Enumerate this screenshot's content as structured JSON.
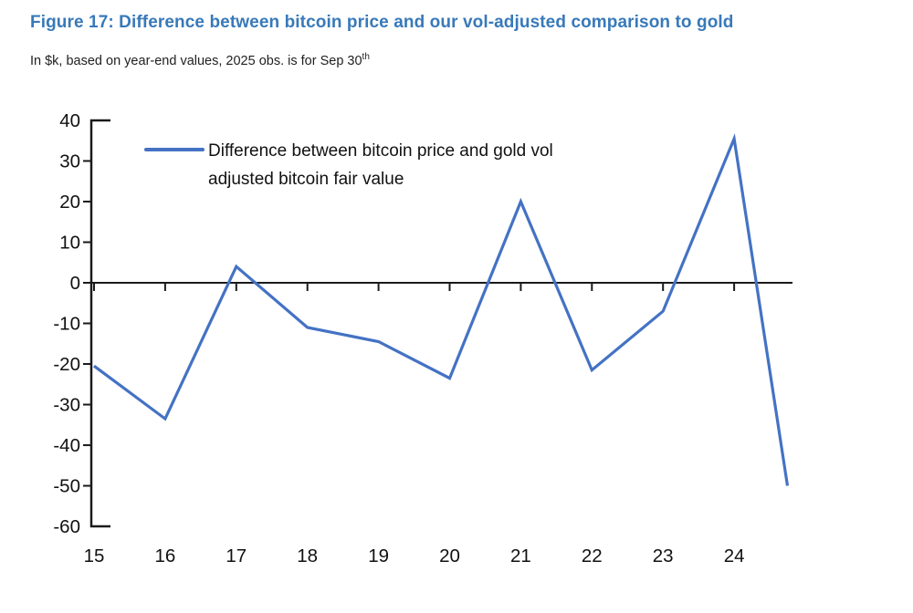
{
  "header": {
    "title": "Figure 17: Difference between bitcoin price and our vol-adjusted comparison to gold",
    "subtitle": "In $k, based on year-end values, 2025 obs. is for Sep 30",
    "subtitle_superscript": "th"
  },
  "legend": {
    "lines": [
      "Difference between bitcoin price and gold vol",
      "adjusted bitcoin fair value"
    ]
  },
  "colors": {
    "title": "#3879b9",
    "line": "#4472c4",
    "axis": "#1a1a1a",
    "label": "#111111"
  },
  "chart_data": {
    "type": "line",
    "title": "Figure 17: Difference between bitcoin price and our vol-adjusted comparison to gold",
    "subtitle": "In $k, based on year-end values, 2025 obs. is for Sep 30th",
    "x": [
      15,
      16,
      17,
      18,
      19,
      20,
      21,
      22,
      23,
      24,
      24.75
    ],
    "series": [
      {
        "name": "Difference between bitcoin price and gold vol adjusted bitcoin fair value",
        "values": [
          -20.5,
          -33.5,
          4,
          -11,
          -14.5,
          -23.5,
          20,
          -21.5,
          -7,
          35.5,
          -50
        ]
      }
    ],
    "xticks": [
      15,
      16,
      17,
      18,
      19,
      20,
      21,
      22,
      23,
      24
    ],
    "xtick_labels": [
      "15",
      "16",
      "17",
      "18",
      "19",
      "20",
      "21",
      "22",
      "23",
      "24"
    ],
    "yticks": [
      40,
      30,
      20,
      10,
      0,
      -10,
      -20,
      -30,
      -40,
      -50,
      -60
    ],
    "ylim": [
      -60,
      40
    ],
    "xlim": [
      15,
      24.85
    ],
    "xlabel": "",
    "ylabel": "",
    "grid": false,
    "zero_line": true,
    "legend_position": "top-left"
  }
}
